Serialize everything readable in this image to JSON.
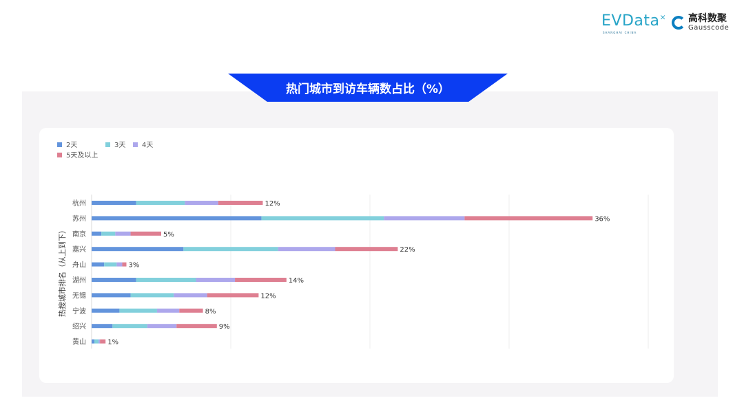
{
  "header": {
    "logo_evdata": "EVData",
    "logo_evdata_sub": "SHANGHAI CHINA",
    "logo_gauss_cn": "高科数聚",
    "logo_gauss_en": "Gausscode"
  },
  "title": "热门城市到访车辆数占比（%）",
  "colors": {
    "banner": "#0b3df2",
    "s2": "#6394dc",
    "s3": "#82d0dc",
    "s4": "#ada7ec",
    "s5": "#de7f91"
  },
  "chart_data": {
    "type": "bar",
    "orientation": "horizontal",
    "stacked": true,
    "ylabel": "热搜城市排名（从上到下）",
    "xlabel": "",
    "xlim": [
      0,
      40
    ],
    "grid": true,
    "legend_position": "top-left",
    "categories": [
      "杭州",
      "苏州",
      "南京",
      "嘉兴",
      "舟山",
      "湖州",
      "无锡",
      "宁波",
      "绍兴",
      "黄山"
    ],
    "totals_labels": [
      "12%",
      "36%",
      "5%",
      "22%",
      "3%",
      "14%",
      "12%",
      "8%",
      "9%",
      "1%"
    ],
    "series": [
      {
        "name": "2天",
        "color": "#6394dc",
        "values": [
          3.2,
          12.2,
          0.7,
          6.6,
          0.9,
          3.2,
          2.8,
          2.0,
          1.5,
          0.2
        ]
      },
      {
        "name": "3天",
        "color": "#82d0dc",
        "values": [
          3.5,
          8.8,
          1.0,
          6.8,
          0.9,
          4.3,
          3.1,
          2.7,
          2.5,
          0.3
        ]
      },
      {
        "name": "4天",
        "color": "#ada7ec",
        "values": [
          2.4,
          5.8,
          1.1,
          4.1,
          0.4,
          2.8,
          2.4,
          1.6,
          2.1,
          0.1
        ]
      },
      {
        "name": "5天及以上",
        "color": "#de7f91",
        "values": [
          3.2,
          9.2,
          2.2,
          4.5,
          0.3,
          3.7,
          3.7,
          1.7,
          2.9,
          0.4
        ]
      }
    ]
  }
}
